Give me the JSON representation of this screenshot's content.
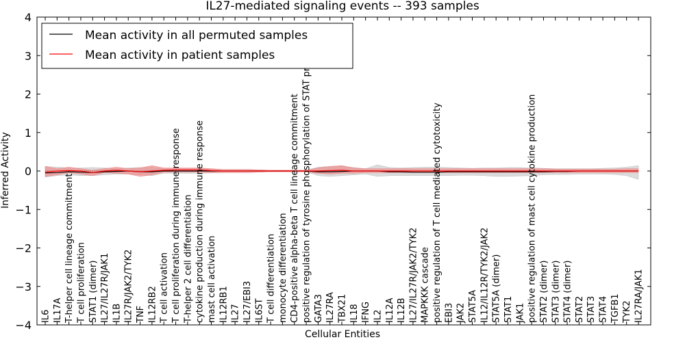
{
  "chart_data": {
    "type": "line",
    "title": "IL27-mediated signaling events -- 393 samples",
    "xlabel": "Cellular Entities",
    "ylabel": "Inferred Activity",
    "ylim": [
      -4,
      4
    ],
    "yticks": [
      -4,
      -3,
      -2,
      -1,
      0,
      1,
      2,
      3,
      4
    ],
    "ytick_labels": [
      "−4",
      "−3",
      "−2",
      "−1",
      "0",
      "1",
      "2",
      "3",
      "4"
    ],
    "grid": false,
    "legend_position": "top-left",
    "categories": [
      "IL6",
      "IL17A",
      "T-helper cell lineage commitment",
      "T cell proliferation",
      "STAT1 (dimer)",
      "IL27/IL27R/JAK1",
      "IL1B",
      "IL27R/JAK2/TYK2",
      "TNF",
      "IL12RB2",
      "T cell activation",
      "T cell proliferation during immune response",
      "T-helper 2 cell differentiation",
      "cytokine production during immune response",
      "mast cell activation",
      "IL12RB1",
      "IL27",
      "IL27/EBI3",
      "IL6ST",
      "T cell differentiation",
      "monocyte differentiation",
      "CD4-positive alpha-beta T cell lineage commitment",
      "positive regulation of tyrosine phosphorylation of STAT protein",
      "GATA3",
      "IL27RA",
      "TBX21",
      "IL18",
      "IFNG",
      "IL2",
      "IL12A",
      "IL12B",
      "IL27/IL27R/JAK2/TYK2",
      "MAPKKK cascade",
      "positive regulation of T cell mediated cytotoxicity",
      "EBI3",
      "JAK2",
      "STAT5A",
      "IL12/IL12R/TYK2/JAK2",
      "STAT5A (dimer)",
      "STAT1",
      "JAK1",
      "positive regulation of mast cell cytokine production",
      "STAT2 (dimer)",
      "STAT3 (dimer)",
      "STAT4 (dimer)",
      "STAT2",
      "STAT3",
      "STAT4",
      "TGFB1",
      "TYK2",
      "IL27RA/JAK1"
    ],
    "series": [
      {
        "name": "Mean activity in all permuted samples",
        "color": "#000000",
        "values": [
          -0.05,
          -0.04,
          -0.02,
          -0.03,
          -0.04,
          -0.02,
          -0.01,
          0.0,
          -0.02,
          -0.02,
          0.0,
          0.0,
          0.0,
          0.0,
          0.0,
          0.0,
          0.0,
          0.0,
          0.0,
          0.0,
          0.0,
          0.0,
          0.0,
          -0.02,
          -0.02,
          -0.01,
          0.0,
          0.0,
          0.0,
          -0.02,
          -0.02,
          -0.03,
          -0.03,
          -0.03,
          -0.02,
          -0.02,
          -0.02,
          -0.02,
          -0.02,
          -0.02,
          -0.02,
          -0.02,
          -0.02,
          -0.01,
          -0.01,
          0.0,
          0.0,
          0.0,
          0.0,
          0.0,
          0.0
        ],
        "band_upper": [
          0.12,
          0.1,
          0.08,
          0.08,
          0.09,
          0.08,
          0.07,
          0.08,
          0.09,
          0.1,
          0.06,
          0.06,
          0.06,
          0.06,
          0.05,
          0.04,
          0.04,
          0.04,
          0.03,
          0.02,
          0.02,
          0.02,
          0.02,
          0.1,
          0.12,
          0.13,
          0.09,
          0.06,
          0.16,
          0.09,
          0.08,
          0.09,
          0.1,
          0.1,
          0.09,
          0.08,
          0.07,
          0.08,
          0.08,
          0.09,
          0.09,
          0.08,
          0.07,
          0.06,
          0.06,
          0.06,
          0.06,
          0.07,
          0.08,
          0.1,
          0.14
        ],
        "band_lower": [
          -0.16,
          -0.12,
          -0.1,
          -0.12,
          -0.12,
          -0.1,
          -0.08,
          -0.08,
          -0.1,
          -0.12,
          -0.06,
          -0.06,
          -0.06,
          -0.06,
          -0.05,
          -0.04,
          -0.04,
          -0.04,
          -0.03,
          -0.02,
          -0.02,
          -0.02,
          -0.02,
          -0.12,
          -0.14,
          -0.12,
          -0.1,
          -0.08,
          -0.14,
          -0.12,
          -0.12,
          -0.12,
          -0.12,
          -0.12,
          -0.12,
          -0.11,
          -0.11,
          -0.12,
          -0.14,
          -0.14,
          -0.13,
          -0.12,
          -0.1,
          -0.09,
          -0.09,
          -0.08,
          -0.08,
          -0.08,
          -0.09,
          -0.12,
          -0.22
        ]
      },
      {
        "name": "Mean activity in patient samples",
        "color": "#ff0000",
        "values": [
          -0.03,
          0.0,
          0.01,
          0.0,
          -0.04,
          0.0,
          0.02,
          0.0,
          -0.02,
          0.0,
          0.02,
          0.03,
          0.03,
          0.03,
          0.01,
          0.0,
          0.0,
          0.0,
          0.0,
          0.0,
          0.0,
          0.0,
          0.0,
          0.0,
          0.01,
          0.02,
          0.0,
          0.0,
          0.0,
          0.0,
          0.0,
          0.0,
          0.0,
          0.0,
          0.0,
          0.0,
          0.0,
          0.0,
          0.0,
          0.0,
          0.0,
          0.0,
          0.0,
          0.0,
          0.0,
          0.0,
          0.0,
          0.0,
          0.0,
          0.0,
          0.0
        ],
        "band_upper": [
          0.12,
          0.06,
          0.1,
          0.06,
          0.02,
          0.06,
          0.1,
          0.06,
          0.08,
          0.14,
          0.08,
          0.08,
          0.08,
          0.08,
          0.06,
          0.04,
          0.04,
          0.04,
          0.03,
          0.02,
          0.02,
          0.02,
          0.02,
          0.08,
          0.12,
          0.14,
          0.08,
          0.06,
          0.06,
          0.06,
          0.06,
          0.06,
          0.06,
          0.06,
          0.06,
          0.06,
          0.06,
          0.06,
          0.06,
          0.06,
          0.06,
          0.06,
          0.06,
          0.05,
          0.05,
          0.05,
          0.05,
          0.05,
          0.05,
          0.06,
          0.06
        ],
        "band_lower": [
          -0.14,
          -0.1,
          -0.04,
          -0.08,
          -0.12,
          -0.04,
          -0.06,
          -0.08,
          -0.14,
          -0.1,
          -0.03,
          -0.03,
          -0.03,
          -0.03,
          -0.04,
          -0.04,
          -0.04,
          -0.04,
          -0.03,
          -0.02,
          -0.02,
          -0.02,
          -0.02,
          -0.06,
          -0.08,
          -0.06,
          -0.06,
          -0.04,
          -0.04,
          -0.04,
          -0.04,
          -0.04,
          -0.04,
          -0.04,
          -0.04,
          -0.04,
          -0.04,
          -0.04,
          -0.04,
          -0.04,
          -0.04,
          -0.04,
          -0.04,
          -0.04,
          -0.04,
          -0.04,
          -0.04,
          -0.04,
          -0.04,
          -0.04,
          -0.04
        ]
      }
    ]
  }
}
